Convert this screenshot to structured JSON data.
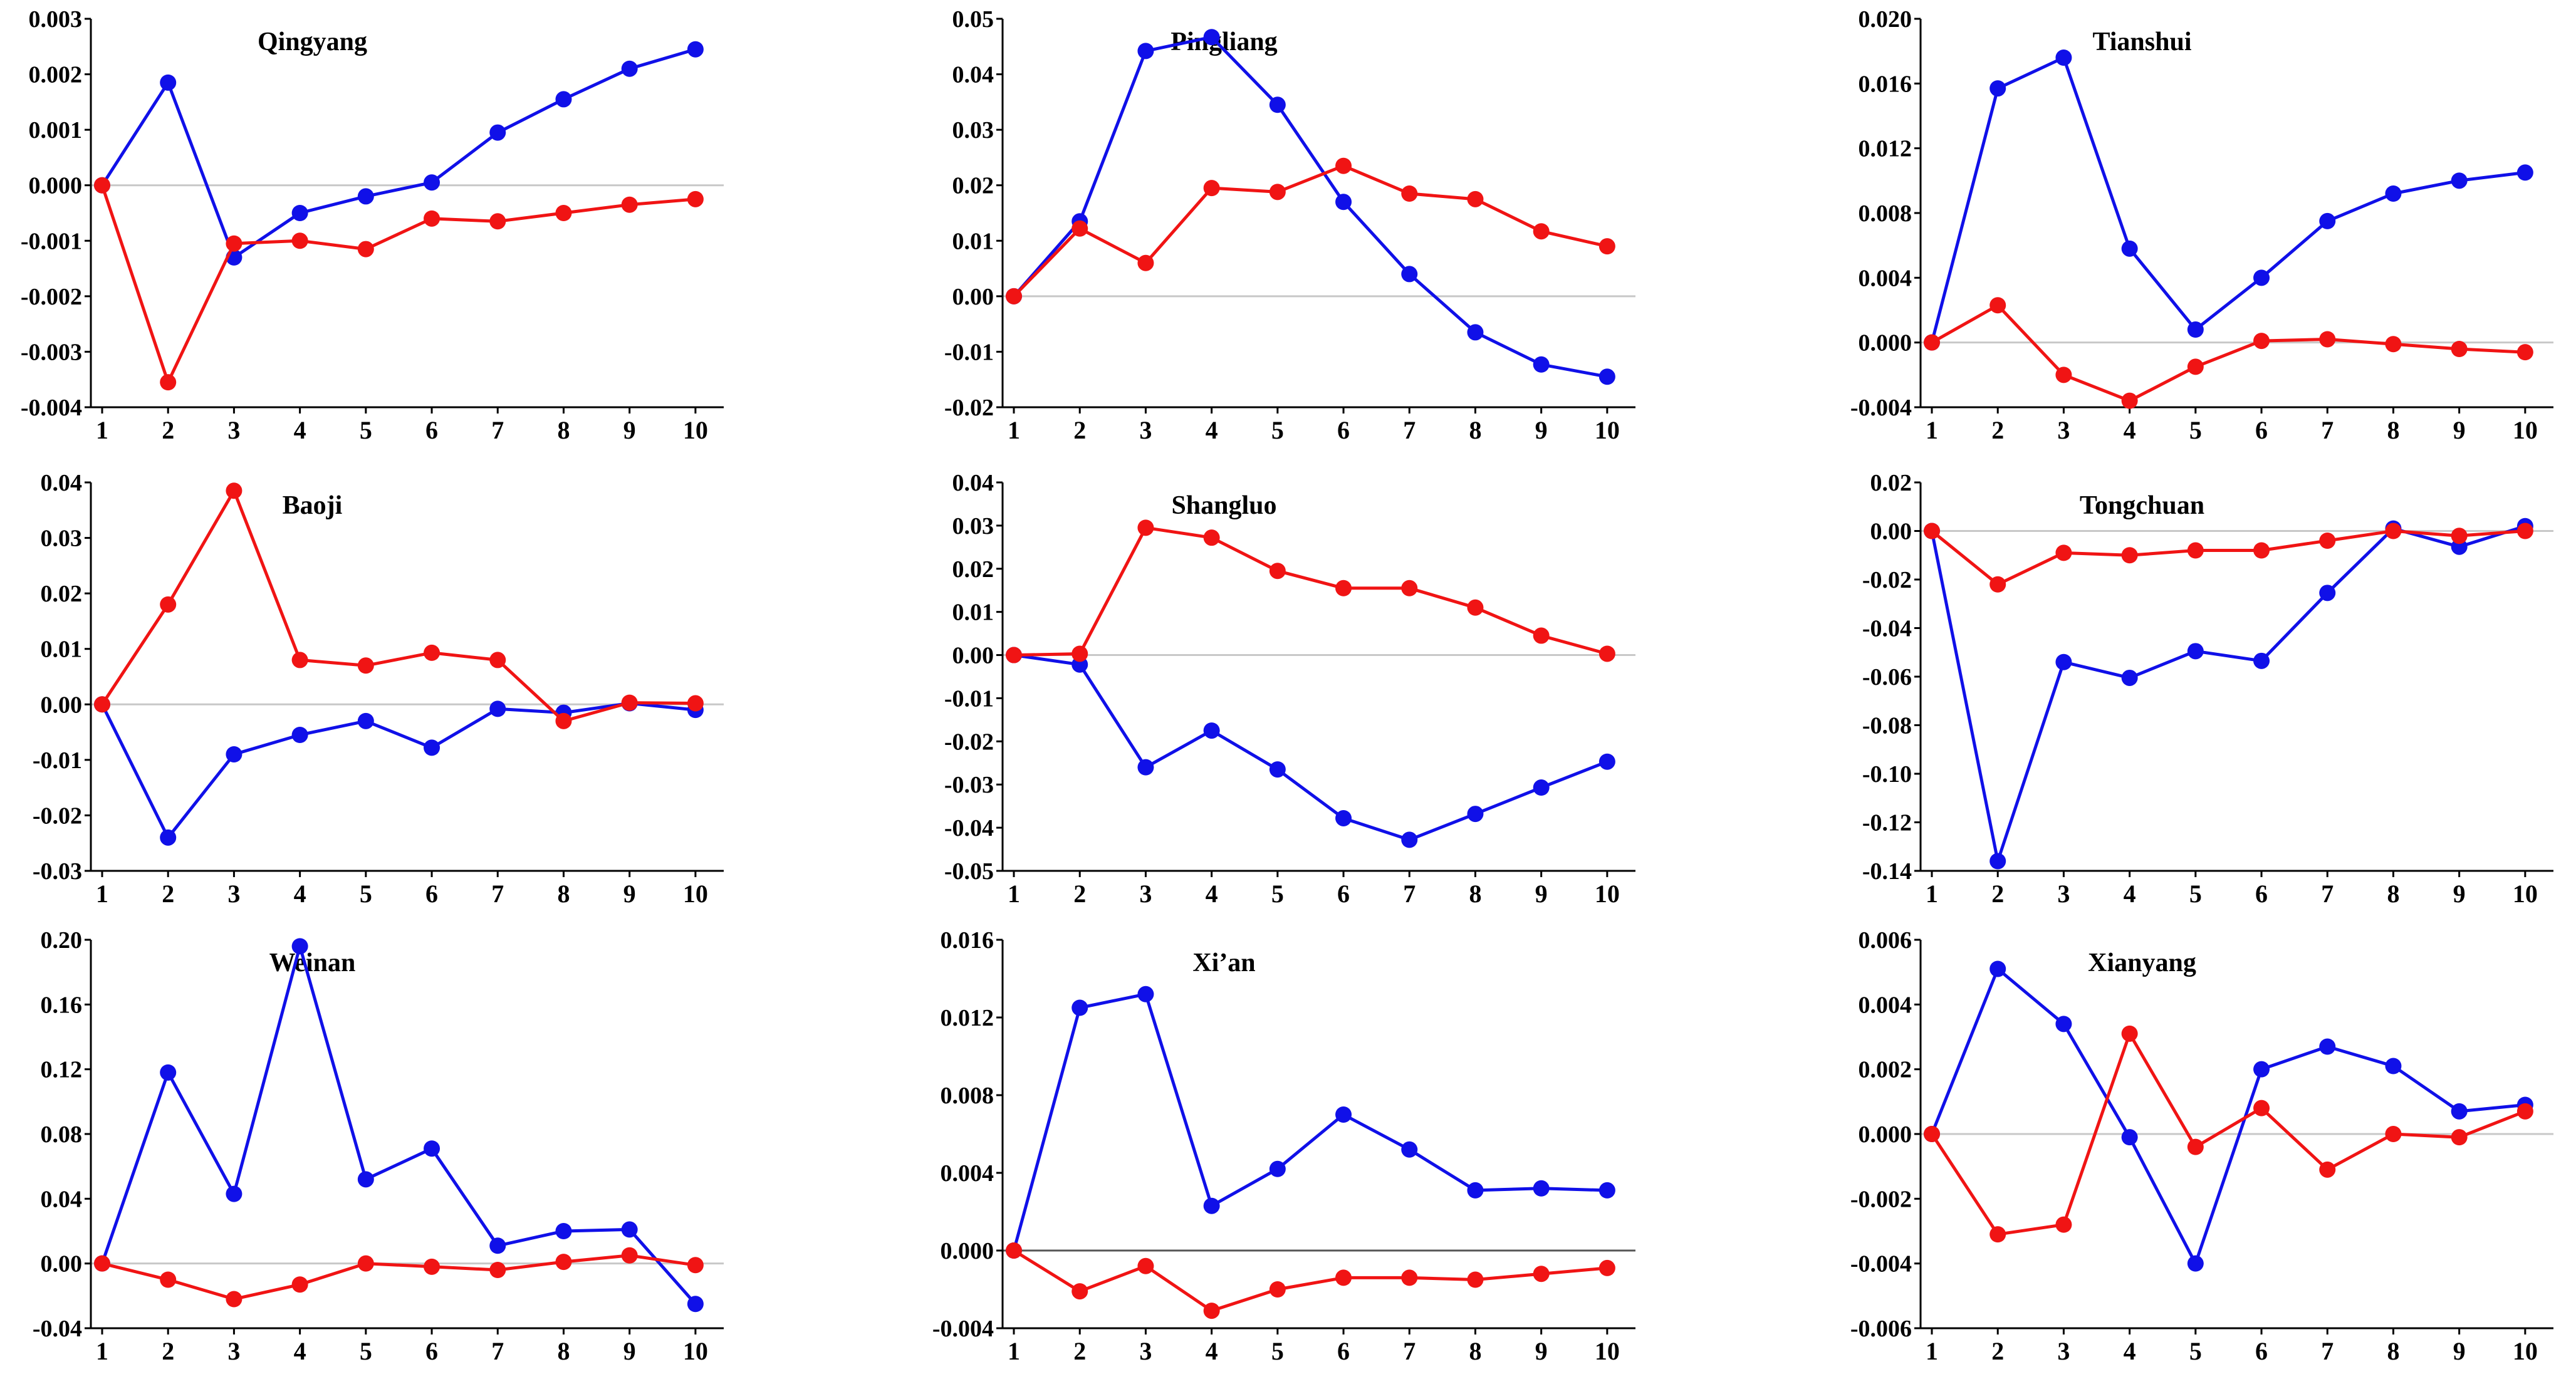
{
  "colors": {
    "series_a": "#1010e8",
    "series_b": "#f01414",
    "axis": "#000000",
    "zero_line": "#c8c8c8",
    "zero_line_dark": "#555555"
  },
  "chart_data": [
    {
      "type": "line",
      "title": "Qingyang",
      "x": [
        1,
        2,
        3,
        4,
        5,
        6,
        7,
        8,
        9,
        10
      ],
      "yticks": [
        "0.003",
        "0.002",
        "0.001",
        "0.000",
        "-0.001",
        "-0.002",
        "-0.003",
        "-0.004"
      ],
      "ylim": [
        -0.004,
        0.003
      ],
      "series": [
        {
          "color": "blue",
          "values": [
            0.0,
            0.00185,
            -0.0013,
            -0.0005,
            -0.0002,
            5e-05,
            0.00095,
            0.00155,
            0.0021,
            0.00245
          ]
        },
        {
          "color": "red",
          "values": [
            0.0,
            -0.00355,
            -0.00105,
            -0.001,
            -0.00115,
            -0.0006,
            -0.00065,
            -0.0005,
            -0.00035,
            -0.00025
          ]
        }
      ]
    },
    {
      "type": "line",
      "title": "Pingliang",
      "x": [
        1,
        2,
        3,
        4,
        5,
        6,
        7,
        8,
        9,
        10
      ],
      "yticks": [
        "0.05",
        "0.04",
        "0.03",
        "0.02",
        "0.01",
        "0.00",
        "-0.01",
        "-0.02"
      ],
      "ylim": [
        -0.02,
        0.05
      ],
      "series": [
        {
          "color": "blue",
          "values": [
            0.0,
            0.0135,
            0.0442,
            0.0467,
            0.0345,
            0.017,
            0.004,
            -0.0065,
            -0.0123,
            -0.0145
          ]
        },
        {
          "color": "red",
          "values": [
            0.0,
            0.0122,
            0.006,
            0.0195,
            0.0188,
            0.0235,
            0.0185,
            0.0175,
            0.0117,
            0.009
          ]
        }
      ]
    },
    {
      "type": "line",
      "title": "Tianshui",
      "x": [
        1,
        2,
        3,
        4,
        5,
        6,
        7,
        8,
        9,
        10
      ],
      "yticks": [
        "0.020",
        "0.016",
        "0.012",
        "0.008",
        "0.004",
        "0.000",
        "-0.004"
      ],
      "ylim": [
        -0.004,
        0.02
      ],
      "series": [
        {
          "color": "blue",
          "values": [
            0.0,
            0.0157,
            0.0176,
            0.0058,
            0.0008,
            0.004,
            0.0075,
            0.0092,
            0.01,
            0.0105
          ]
        },
        {
          "color": "red",
          "values": [
            0.0,
            0.0023,
            -0.002,
            -0.0036,
            -0.0015,
            0.0001,
            0.0002,
            -0.0001,
            -0.0004,
            -0.0006
          ]
        }
      ]
    },
    {
      "type": "line",
      "title": "Baoji",
      "x": [
        1,
        2,
        3,
        4,
        5,
        6,
        7,
        8,
        9,
        10
      ],
      "yticks": [
        "0.04",
        "0.03",
        "0.02",
        "0.01",
        "0.00",
        "-0.01",
        "-0.02",
        "-0.03"
      ],
      "ylim": [
        -0.03,
        0.04
      ],
      "series": [
        {
          "color": "blue",
          "values": [
            0.0,
            -0.024,
            -0.009,
            -0.0055,
            -0.003,
            -0.0078,
            -0.0008,
            -0.0015,
            0.0002,
            -0.001
          ]
        },
        {
          "color": "red",
          "values": [
            0.0,
            0.018,
            0.0385,
            0.008,
            0.007,
            0.0093,
            0.008,
            -0.003,
            0.0003,
            0.0002
          ]
        }
      ]
    },
    {
      "type": "line",
      "title": "Shangluo",
      "x": [
        1,
        2,
        3,
        4,
        5,
        6,
        7,
        8,
        9,
        10
      ],
      "yticks": [
        "0.04",
        "0.03",
        "0.02",
        "0.01",
        "0.00",
        "-0.01",
        "-0.02",
        "-0.03",
        "-0.04",
        "-0.05"
      ],
      "ylim": [
        -0.05,
        0.04
      ],
      "series": [
        {
          "color": "blue",
          "values": [
            0.0,
            -0.0022,
            -0.026,
            -0.0175,
            -0.0265,
            -0.0378,
            -0.0428,
            -0.0368,
            -0.0307,
            -0.0247
          ]
        },
        {
          "color": "red",
          "values": [
            0.0,
            0.0003,
            0.0295,
            0.0272,
            0.0195,
            0.0155,
            0.0155,
            0.011,
            0.0045,
            0.0003
          ]
        }
      ]
    },
    {
      "type": "line",
      "title": "Tongchuan",
      "x": [
        1,
        2,
        3,
        4,
        5,
        6,
        7,
        8,
        9,
        10
      ],
      "yticks": [
        "0.02",
        "0.00",
        "-0.02",
        "-0.04",
        "-0.06",
        "-0.08",
        "-0.10",
        "-0.12",
        "-0.14"
      ],
      "ylim": [
        -0.14,
        0.02
      ],
      "series": [
        {
          "color": "blue",
          "values": [
            0.0,
            -0.136,
            -0.054,
            -0.0605,
            -0.0495,
            -0.0535,
            -0.0255,
            0.001,
            -0.0065,
            0.002
          ]
        },
        {
          "color": "red",
          "values": [
            0.0,
            -0.022,
            -0.009,
            -0.01,
            -0.008,
            -0.008,
            -0.004,
            0.0,
            -0.002,
            0.0
          ]
        }
      ]
    },
    {
      "type": "line",
      "title": "Weinan",
      "x": [
        1,
        2,
        3,
        4,
        5,
        6,
        7,
        8,
        9,
        10
      ],
      "yticks": [
        "0.20",
        "0.16",
        "0.12",
        "0.08",
        "0.04",
        "0.00",
        "-0.04"
      ],
      "ylim": [
        -0.04,
        0.2
      ],
      "series": [
        {
          "color": "blue",
          "values": [
            0.0,
            0.118,
            0.043,
            0.196,
            0.052,
            0.071,
            0.011,
            0.02,
            0.021,
            -0.025
          ]
        },
        {
          "color": "red",
          "values": [
            0.0,
            -0.01,
            -0.022,
            -0.013,
            0.0,
            -0.002,
            -0.004,
            0.001,
            0.005,
            -0.001
          ]
        }
      ]
    },
    {
      "type": "line",
      "title": "Xi’an",
      "x": [
        1,
        2,
        3,
        4,
        5,
        6,
        7,
        8,
        9,
        10
      ],
      "yticks": [
        "0.016",
        "0.012",
        "0.008",
        "0.004",
        "0.000",
        "-0.004"
      ],
      "ylim": [
        -0.004,
        0.016
      ],
      "series": [
        {
          "color": "blue",
          "values": [
            0.0,
            0.0125,
            0.0132,
            0.0023,
            0.0042,
            0.007,
            0.0052,
            0.0031,
            0.0032,
            0.0031
          ]
        },
        {
          "color": "red",
          "values": [
            0.0,
            -0.0021,
            -0.0008,
            -0.0031,
            -0.002,
            -0.0014,
            -0.0014,
            -0.0015,
            -0.0012,
            -0.0009
          ]
        }
      ]
    },
    {
      "type": "line",
      "title": "Xianyang",
      "x": [
        1,
        2,
        3,
        4,
        5,
        6,
        7,
        8,
        9,
        10
      ],
      "yticks": [
        "0.006",
        "0.004",
        "0.002",
        "0.000",
        "-0.002",
        "-0.004",
        "-0.006"
      ],
      "ylim": [
        -0.006,
        0.006
      ],
      "series": [
        {
          "color": "blue",
          "values": [
            0.0,
            0.0051,
            0.0034,
            -0.0001,
            -0.004,
            0.002,
            0.0027,
            0.0021,
            0.0007,
            0.0009
          ]
        },
        {
          "color": "red",
          "values": [
            0.0,
            -0.0031,
            -0.0028,
            0.0031,
            -0.0004,
            0.0008,
            -0.0011,
            0.0,
            -0.0001,
            0.0007
          ]
        }
      ]
    }
  ]
}
